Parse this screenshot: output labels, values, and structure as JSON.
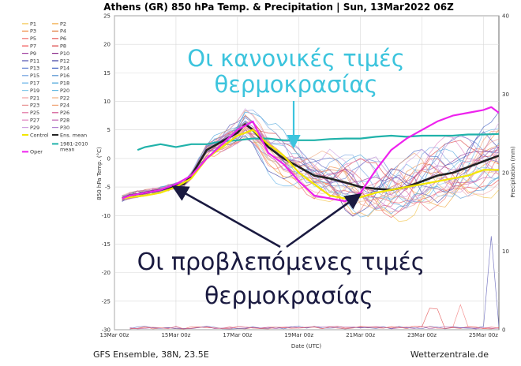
{
  "colors": {
    "mean_1981_2010": "#20b2aa",
    "ens_mean": "#222222",
    "control": "#f2e600",
    "oper": "#ee22ee",
    "annotation_cyan": "#3cc4dd",
    "annotation_dark": "#1a1a40"
  },
  "chart_data": {
    "type": "line",
    "title": "Athens  (GR)  850 hPa Temp. & Precipitation | Sun, 13Mar2022 06Z",
    "xlabel": "Date (UTC)",
    "ylabel": "850 hPa Temp. (°C)",
    "y2label": "Precipitation (mm)",
    "ylim": [
      -30,
      25
    ],
    "y_ticks": [
      "25",
      "20",
      "15",
      "10",
      "5",
      "0",
      "-5",
      "-10",
      "-15",
      "-20",
      "-25",
      "-30"
    ],
    "y2lim": [
      0,
      40
    ],
    "y2_ticks": [
      "40",
      "30",
      "20",
      "10",
      "0"
    ],
    "x_range_days": [
      13,
      25.5
    ],
    "x_ticks": [
      {
        "day": 13,
        "label": "13Mar 00z"
      },
      {
        "day": 15,
        "label": "15Mar 00z"
      },
      {
        "day": 17,
        "label": "17Mar 00z"
      },
      {
        "day": 19,
        "label": "19Mar 00z"
      },
      {
        "day": 21,
        "label": "21Mar 00z"
      },
      {
        "day": 23,
        "label": "23Mar 00z"
      },
      {
        "day": 25,
        "label": "25Mar 00z"
      }
    ],
    "grid": true,
    "legend_position": "left",
    "legend": [
      [
        "P1",
        "#f2c040"
      ],
      [
        "P2",
        "#f0a030"
      ],
      [
        "P3",
        "#f08a40"
      ],
      [
        "P4",
        "#e07838"
      ],
      [
        "P5",
        "#f07070"
      ],
      [
        "P6",
        "#e85858"
      ],
      [
        "P7",
        "#f04848"
      ],
      [
        "P8",
        "#d83838"
      ],
      [
        "P9",
        "#a040a0"
      ],
      [
        "P10",
        "#8a2a8a"
      ],
      [
        "P11",
        "#5050b0"
      ],
      [
        "P12",
        "#3a3aa0"
      ],
      [
        "P13",
        "#5a7ad0"
      ],
      [
        "P14",
        "#3a5ac0"
      ],
      [
        "P15",
        "#70a0e0"
      ],
      [
        "P16",
        "#5090d0"
      ],
      [
        "P17",
        "#60b0e8"
      ],
      [
        "P18",
        "#40a0d8"
      ],
      [
        "P19",
        "#80c8e8"
      ],
      [
        "P20",
        "#60b8e0"
      ],
      [
        "P21",
        "#f0a0a0"
      ],
      [
        "P22",
        "#f0b080"
      ],
      [
        "P23",
        "#e89090"
      ],
      [
        "P24",
        "#f0a070"
      ],
      [
        "P25",
        "#e070a0"
      ],
      [
        "P26",
        "#d05090"
      ],
      [
        "P27",
        "#e080c0"
      ],
      [
        "P28",
        "#c060b0"
      ],
      [
        "P29",
        "#d0a0e0"
      ],
      [
        "P30",
        "#b080d0"
      ],
      [
        "Control",
        "#f2e600"
      ],
      [
        "Ens. mean",
        "#222222"
      ]
    ],
    "legend_extra": [
      {
        "label": "1981-2010 mean",
        "color": "#20b2aa"
      },
      {
        "label": "Oper",
        "color": "#ee22ee"
      }
    ],
    "series": [
      {
        "name": "1981-2010 mean",
        "x": [
          13.75,
          14,
          14.5,
          15,
          15.5,
          16,
          16.5,
          17,
          17.5,
          18,
          18.5,
          19,
          19.5,
          20,
          20.5,
          21,
          21.5,
          22,
          22.5,
          23,
          23.5,
          24,
          24.5,
          25,
          25.5
        ],
        "y": [
          1.5,
          2,
          2.5,
          2,
          2.5,
          2.5,
          3,
          3.2,
          3.5,
          3.5,
          3.2,
          3.2,
          3.2,
          3.4,
          3.5,
          3.5,
          3.8,
          4,
          3.8,
          4,
          4,
          4,
          4.2,
          4.2,
          4.3
        ]
      },
      {
        "name": "Ens. mean",
        "x": [
          13.25,
          13.5,
          14,
          14.5,
          15,
          15.25,
          15.5,
          16,
          16.5,
          17,
          17.25,
          17.5,
          18,
          18.5,
          19,
          19.5,
          20,
          20.5,
          21,
          21.5,
          22,
          22.5,
          23,
          23.5,
          24,
          24.5,
          25,
          25.5
        ],
        "y": [
          -7,
          -6.5,
          -6,
          -5.5,
          -4.8,
          -4.5,
          -3,
          1.5,
          3,
          4.5,
          6,
          5,
          2,
          0,
          -1.5,
          -3,
          -3.5,
          -4.2,
          -5,
          -5.3,
          -5.5,
          -5,
          -4,
          -3,
          -2.5,
          -1.5,
          -0.5,
          0.5
        ]
      },
      {
        "name": "Control",
        "x": [
          13.25,
          13.5,
          14,
          14.5,
          15,
          15.5,
          16,
          16.5,
          17,
          17.5,
          18,
          18.5,
          19,
          19.5,
          20,
          20.5,
          21,
          21.5,
          22,
          22.5,
          23,
          23.5,
          24,
          24.5,
          25,
          25.5
        ],
        "y": [
          -7,
          -6.8,
          -6.5,
          -6,
          -5,
          -3.5,
          0,
          2,
          4,
          5,
          2.5,
          0.5,
          -2.5,
          -4.5,
          -6.5,
          -7,
          -6.8,
          -6,
          -5.5,
          -5,
          -4.5,
          -4,
          -3.5,
          -3,
          -2,
          -2
        ]
      },
      {
        "name": "Oper",
        "x": [
          13.25,
          13.5,
          14,
          14.5,
          15,
          15.5,
          16,
          16.5,
          17,
          17.5,
          18,
          18.5,
          19,
          19.5,
          20,
          20.5,
          21,
          21.5,
          22,
          22.5,
          23,
          23.5,
          24,
          24.5,
          25,
          25.25,
          25.5
        ],
        "y": [
          -7,
          -6.5,
          -6,
          -5.5,
          -4.5,
          -3,
          0,
          2.5,
          5,
          6.5,
          1,
          -1,
          -4,
          -6.5,
          -7,
          -7.5,
          -6,
          -2,
          1.5,
          3.5,
          5,
          6.5,
          7.5,
          8,
          8.5,
          9,
          8
        ]
      }
    ]
  },
  "annotations": {
    "normal_line1": "Οι κανονικές τιμές",
    "normal_line2": "θερμοκρασίας",
    "forecast_line1": "Οι προβλεπόμενες τιμές",
    "forecast_line2": "θερμοκρασίας"
  },
  "footer": {
    "left": "GFS Ensemble, 38N, 23.5E",
    "right": "Wetterzentrale.de"
  }
}
